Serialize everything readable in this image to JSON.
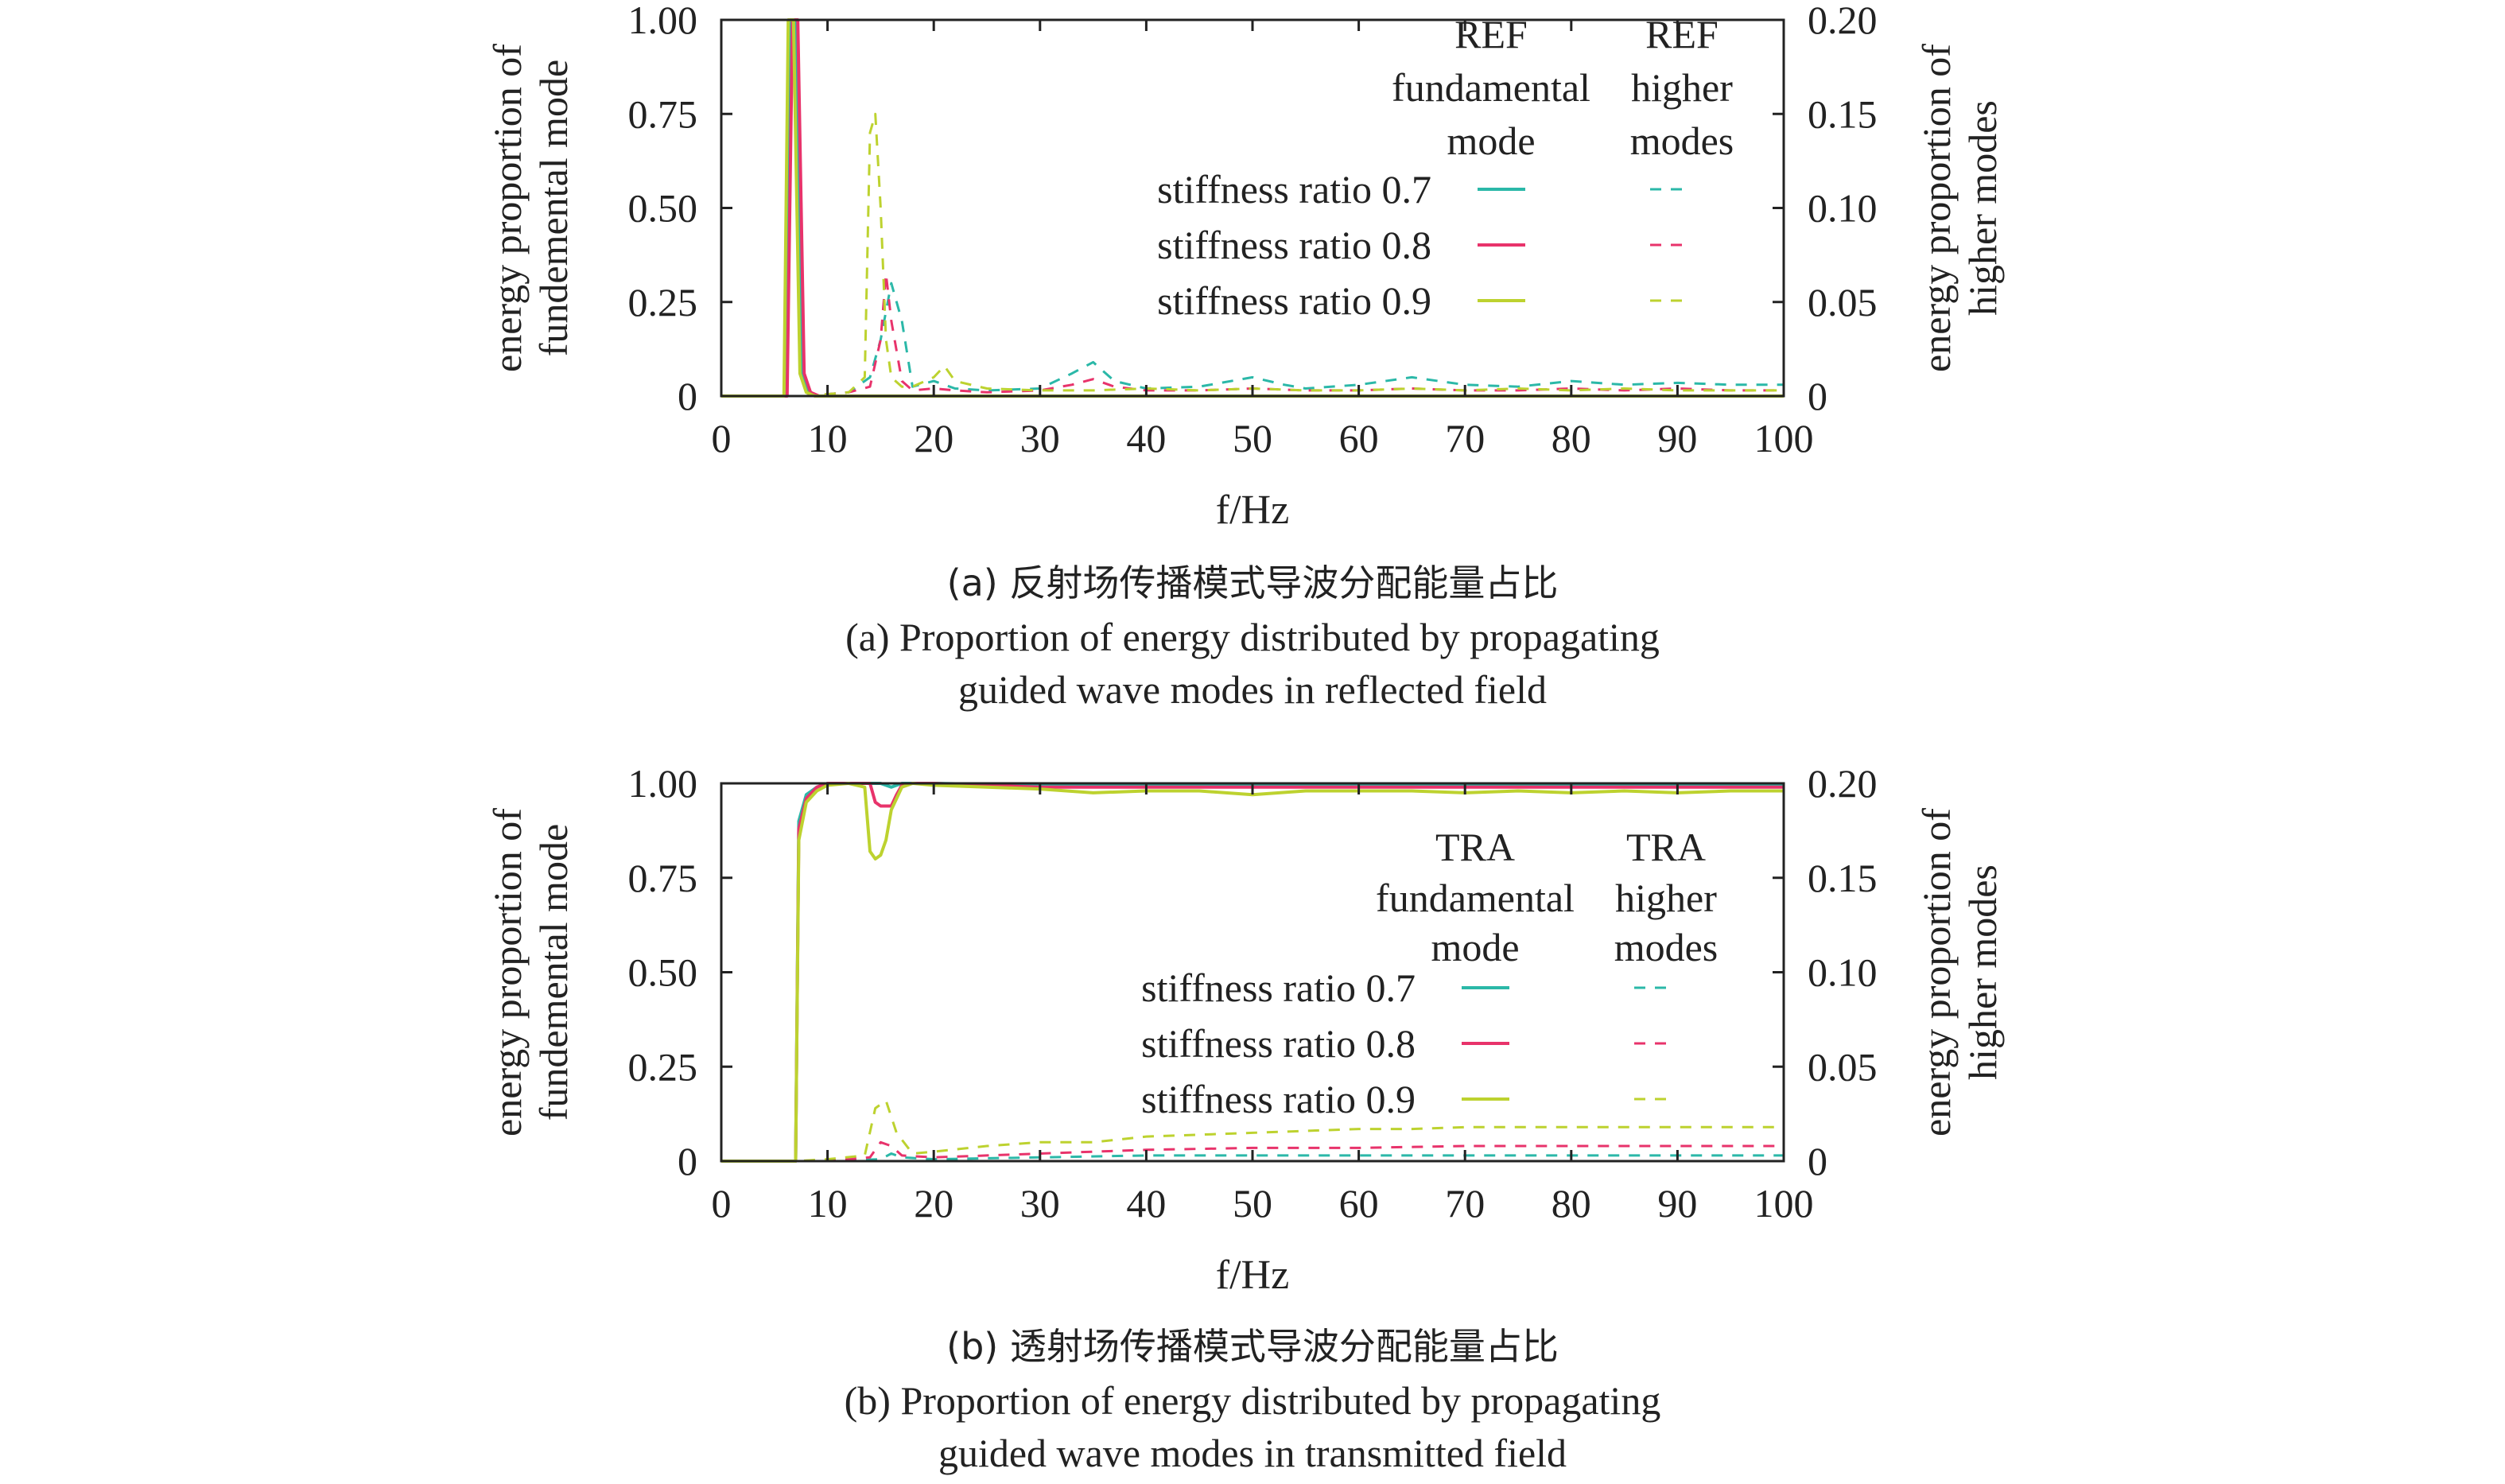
{
  "figure": {
    "panels": [
      {
        "caption_zh": "(a) 反射场传播模式导波分配能量占比",
        "caption_en_1": "(a) Proportion of energy distributed by propagating",
        "caption_en_2": "guided wave modes in reflected field",
        "legend": {
          "col1_title": [
            "REF",
            "fundamental",
            "mode"
          ],
          "col2_title": [
            "REF",
            "higher",
            "modes"
          ],
          "rows": [
            "stiffness ratio 0.7",
            "stiffness ratio 0.8",
            "stiffness ratio 0.9"
          ]
        }
      },
      {
        "caption_zh": "(b) 透射场传播模式导波分配能量占比",
        "caption_en_1": "(b) Proportion of energy distributed by propagating",
        "caption_en_2": "guided wave modes in transmitted field",
        "legend": {
          "col1_title": [
            "TRA",
            "fundamental",
            "mode"
          ],
          "col2_title": [
            "TRA",
            "higher",
            "modes"
          ],
          "rows": [
            "stiffness ratio 0.7",
            "stiffness ratio 0.8",
            "stiffness ratio 0.9"
          ]
        }
      }
    ]
  },
  "chart_data": [
    {
      "type": "line",
      "xlabel": "f/Hz",
      "ylabel_left": [
        "energy proportion of",
        "fundemental mode"
      ],
      "ylabel_right": [
        "energy proportion of",
        "higher modes"
      ],
      "xlim": [
        0,
        100
      ],
      "ylim_left": [
        0,
        1
      ],
      "ylim_right": [
        0,
        0.2
      ],
      "xticks": [
        0,
        10,
        20,
        30,
        40,
        50,
        60,
        70,
        80,
        90,
        100
      ],
      "xtick_labels": [
        "0",
        "10",
        "20",
        "30",
        "40",
        "50",
        "60",
        "70",
        "80",
        "90",
        "100"
      ],
      "yticks_left": [
        0,
        0.25,
        0.5,
        0.75,
        1.0
      ],
      "ytick_labels_left": [
        "0",
        "0.25",
        "0.50",
        "0.75",
        "1.00"
      ],
      "yticks_right": [
        0,
        0.05,
        0.1,
        0.15,
        0.2
      ],
      "ytick_labels_right": [
        "0",
        "0.05",
        "0.10",
        "0.15",
        "0.20"
      ],
      "legend_position": "top-right",
      "series": [
        {
          "name": "stiffness ratio 0.7",
          "mode": "fundamental",
          "axis": "left",
          "color": "#2bb8a8",
          "dash": "solid",
          "x": [
            0,
            6.0,
            6.5,
            7.0,
            7.6,
            8.2,
            9.0,
            100
          ],
          "y": [
            0,
            0,
            1.0,
            1.0,
            0.06,
            0.01,
            0,
            0
          ]
        },
        {
          "name": "stiffness ratio 0.8",
          "mode": "fundamental",
          "axis": "left",
          "color": "#e8336b",
          "dash": "solid",
          "x": [
            0,
            6.2,
            6.7,
            7.2,
            7.8,
            8.4,
            9.2,
            100
          ],
          "y": [
            0,
            0,
            1.0,
            1.0,
            0.06,
            0.01,
            0,
            0
          ]
        },
        {
          "name": "stiffness ratio 0.9",
          "mode": "fundamental",
          "axis": "left",
          "color": "#bdd22f",
          "dash": "solid",
          "x": [
            0,
            5.9,
            6.3,
            6.8,
            7.4,
            8.0,
            8.8,
            100
          ],
          "y": [
            0,
            0,
            1.0,
            1.0,
            0.06,
            0.01,
            0,
            0
          ]
        },
        {
          "name": "stiffness ratio 0.7",
          "mode": "higher",
          "axis": "right",
          "color": "#2bb8a8",
          "dash": "dashed",
          "x": [
            0,
            8,
            12,
            14,
            15,
            16,
            17,
            18,
            20,
            22,
            25,
            30,
            33,
            35,
            37,
            40,
            45,
            50,
            53,
            55,
            60,
            65,
            70,
            75,
            80,
            85,
            90,
            95,
            100
          ],
          "y": [
            0,
            0,
            0.002,
            0.01,
            0.03,
            0.06,
            0.04,
            0.005,
            0.008,
            0.004,
            0.003,
            0.004,
            0.012,
            0.018,
            0.008,
            0.004,
            0.005,
            0.01,
            0.006,
            0.004,
            0.006,
            0.01,
            0.006,
            0.005,
            0.008,
            0.006,
            0.007,
            0.006,
            0.006
          ]
        },
        {
          "name": "stiffness ratio 0.8",
          "mode": "higher",
          "axis": "right",
          "color": "#e8336b",
          "dash": "dashed",
          "x": [
            0,
            8,
            12,
            14,
            15,
            15.5,
            16,
            17,
            18,
            20,
            22,
            25,
            30,
            33,
            35,
            37,
            40,
            45,
            50,
            55,
            60,
            65,
            70,
            75,
            80,
            85,
            90,
            95,
            100
          ],
          "y": [
            0,
            0,
            0.002,
            0.005,
            0.03,
            0.065,
            0.04,
            0.008,
            0.003,
            0.004,
            0.003,
            0.002,
            0.003,
            0.006,
            0.009,
            0.005,
            0.003,
            0.003,
            0.004,
            0.003,
            0.003,
            0.004,
            0.003,
            0.003,
            0.004,
            0.003,
            0.004,
            0.003,
            0.003
          ]
        },
        {
          "name": "stiffness ratio 0.9",
          "mode": "higher",
          "axis": "right",
          "color": "#bdd22f",
          "dash": "dashed",
          "x": [
            0,
            8,
            12,
            13.5,
            14,
            14.5,
            15,
            15.5,
            16,
            17,
            18,
            20,
            21,
            22,
            25,
            30,
            35,
            40,
            45,
            50,
            55,
            60,
            65,
            70,
            75,
            80,
            85,
            90,
            95,
            100
          ],
          "y": [
            0,
            0,
            0.002,
            0.01,
            0.14,
            0.15,
            0.1,
            0.03,
            0.01,
            0.005,
            0.005,
            0.01,
            0.016,
            0.008,
            0.004,
            0.003,
            0.003,
            0.004,
            0.003,
            0.004,
            0.003,
            0.003,
            0.004,
            0.003,
            0.004,
            0.003,
            0.004,
            0.003,
            0.003,
            0.003
          ]
        }
      ]
    },
    {
      "type": "line",
      "xlabel": "f/Hz",
      "ylabel_left": [
        "energy proportion of",
        "fundemental mode"
      ],
      "ylabel_right": [
        "energy proportion of",
        "higher modes"
      ],
      "xlim": [
        0,
        100
      ],
      "ylim_left": [
        0,
        1
      ],
      "ylim_right": [
        0,
        0.2
      ],
      "xticks": [
        0,
        10,
        20,
        30,
        40,
        50,
        60,
        70,
        80,
        90,
        100
      ],
      "xtick_labels": [
        "0",
        "10",
        "20",
        "30",
        "40",
        "50",
        "60",
        "70",
        "80",
        "90",
        "100"
      ],
      "yticks_left": [
        0,
        0.25,
        0.5,
        0.75,
        1.0
      ],
      "ytick_labels_left": [
        "0",
        "0.25",
        "0.50",
        "0.75",
        "1.00"
      ],
      "yticks_right": [
        0,
        0.05,
        0.1,
        0.15,
        0.2
      ],
      "ytick_labels_right": [
        "0",
        "0.05",
        "0.10",
        "0.15",
        "0.20"
      ],
      "legend_position": "right",
      "series": [
        {
          "name": "stiffness ratio 0.7",
          "mode": "fundamental",
          "axis": "left",
          "color": "#2bb8a8",
          "dash": "solid",
          "x": [
            0,
            7.0,
            7.3,
            8,
            9,
            10,
            12,
            14,
            15,
            16,
            17,
            18,
            20,
            30,
            40,
            50,
            60,
            70,
            80,
            90,
            100
          ],
          "y": [
            0,
            0,
            0.9,
            0.97,
            0.99,
            1.0,
            1.0,
            1.0,
            1.0,
            0.99,
            1.0,
            1.0,
            1.0,
            0.995,
            0.995,
            0.995,
            0.995,
            0.995,
            0.995,
            0.995,
            0.995
          ]
        },
        {
          "name": "stiffness ratio 0.8",
          "mode": "fundamental",
          "axis": "left",
          "color": "#e8336b",
          "dash": "solid",
          "x": [
            0,
            7.0,
            7.3,
            8,
            9,
            10,
            12,
            14,
            14.5,
            15,
            16,
            16.5,
            17,
            18,
            20,
            30,
            40,
            50,
            60,
            70,
            80,
            90,
            100
          ],
          "y": [
            0,
            0,
            0.88,
            0.96,
            0.99,
            1.0,
            1.0,
            1.0,
            0.95,
            0.94,
            0.94,
            0.97,
            0.995,
            1.0,
            1.0,
            0.99,
            0.99,
            0.99,
            0.99,
            0.99,
            0.99,
            0.99,
            0.99
          ]
        },
        {
          "name": "stiffness ratio 0.9",
          "mode": "fundamental",
          "axis": "left",
          "color": "#bdd22f",
          "dash": "solid",
          "x": [
            0,
            7.0,
            7.3,
            8,
            9,
            10,
            12,
            13.5,
            14,
            14.5,
            15,
            15.5,
            16,
            17,
            18,
            20,
            25,
            30,
            35,
            40,
            45,
            50,
            55,
            60,
            65,
            70,
            75,
            80,
            85,
            90,
            95,
            100
          ],
          "y": [
            0,
            0,
            0.85,
            0.95,
            0.98,
            0.995,
            1.0,
            0.99,
            0.82,
            0.8,
            0.81,
            0.85,
            0.93,
            0.99,
            1.0,
            0.995,
            0.99,
            0.985,
            0.975,
            0.98,
            0.98,
            0.97,
            0.98,
            0.98,
            0.98,
            0.975,
            0.98,
            0.975,
            0.98,
            0.975,
            0.98,
            0.98
          ]
        },
        {
          "name": "stiffness ratio 0.7",
          "mode": "higher",
          "axis": "right",
          "color": "#2bb8a8",
          "dash": "dashed",
          "x": [
            0,
            7.0,
            10,
            15,
            16,
            17,
            20,
            30,
            40,
            50,
            60,
            70,
            80,
            90,
            100
          ],
          "y": [
            0,
            0,
            0,
            0.001,
            0.004,
            0.002,
            0.001,
            0.002,
            0.003,
            0.003,
            0.003,
            0.003,
            0.003,
            0.003,
            0.003
          ]
        },
        {
          "name": "stiffness ratio 0.8",
          "mode": "higher",
          "axis": "right",
          "color": "#e8336b",
          "dash": "dashed",
          "x": [
            0,
            7.0,
            10,
            14,
            15,
            16,
            17,
            20,
            30,
            40,
            50,
            60,
            70,
            80,
            90,
            100
          ],
          "y": [
            0,
            0,
            0,
            0.002,
            0.01,
            0.008,
            0.003,
            0.002,
            0.004,
            0.006,
            0.007,
            0.007,
            0.008,
            0.008,
            0.008,
            0.008
          ]
        },
        {
          "name": "stiffness ratio 0.9",
          "mode": "higher",
          "axis": "right",
          "color": "#bdd22f",
          "dash": "dashed",
          "x": [
            0,
            7.0,
            10,
            13.5,
            14.5,
            15.5,
            16.5,
            18,
            20,
            25,
            30,
            35,
            40,
            45,
            50,
            55,
            60,
            65,
            70,
            75,
            80,
            85,
            90,
            95,
            100
          ],
          "y": [
            0,
            0,
            0.001,
            0.003,
            0.028,
            0.032,
            0.015,
            0.004,
            0.005,
            0.008,
            0.01,
            0.01,
            0.013,
            0.014,
            0.015,
            0.016,
            0.017,
            0.017,
            0.018,
            0.018,
            0.018,
            0.018,
            0.018,
            0.018,
            0.018
          ]
        }
      ]
    }
  ]
}
